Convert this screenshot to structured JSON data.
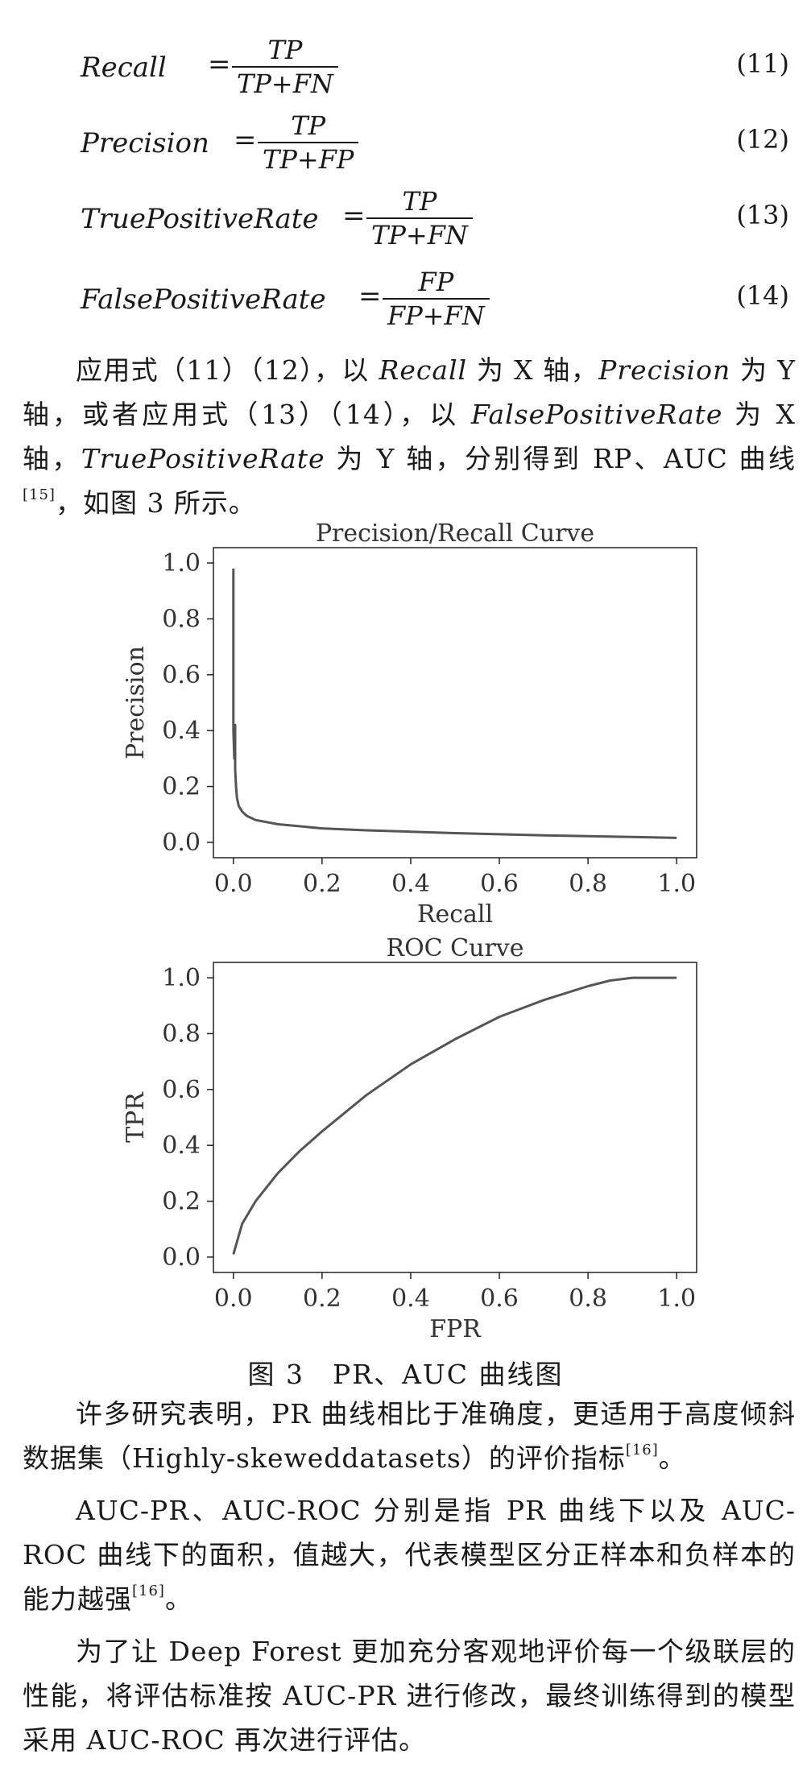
{
  "equations": [
    {
      "lhs": "Recall",
      "num": "TP",
      "den": "TP+FN",
      "no": "(11)"
    },
    {
      "lhs": "Precision",
      "num": "TP",
      "den": "TP+FP",
      "no": "(12)"
    },
    {
      "lhs": "TruePositiveRate",
      "num": "TP",
      "den": "TP+FN",
      "no": "(13)"
    },
    {
      "lhs": "FalsePositiveRate",
      "num": "FP",
      "den": "FP+FN",
      "no": "(14)"
    }
  ],
  "para1": {
    "t1": "应用式（11）（12），以 ",
    "recall": "Recall",
    "t2": " 为 X 轴，",
    "precision": "Precision",
    "t3": " 为 Y 轴，或者应用式（13）（14），以 ",
    "fpr": "FalsePositiveRate",
    "t4": " 为 X 轴，",
    "tpr": "TruePositiveRate",
    "t5": " 为 Y 轴，分别得到 RP、AUC 曲线",
    "ref": "[15]",
    "t6": "，如图 3 所示。"
  },
  "chart_data": [
    {
      "type": "line",
      "title": "Precision/Recall Curve",
      "xlabel": "Recall",
      "ylabel": "Precision",
      "xlim": [
        0,
        1
      ],
      "ylim": [
        0,
        1
      ],
      "xticks": [
        "0.0",
        "0.2",
        "0.4",
        "0.6",
        "0.8",
        "1.0"
      ],
      "yticks": [
        "0.0",
        "0.2",
        "0.4",
        "0.6",
        "0.8",
        "1.0"
      ],
      "series": [
        {
          "x": [
            0.0,
            0.0,
            0.002,
            0.004,
            0.004,
            0.006,
            0.008,
            0.012,
            0.02,
            0.03,
            0.05,
            0.1,
            0.2,
            0.3,
            0.4,
            0.5,
            0.6,
            0.7,
            0.8,
            0.9,
            1.0
          ],
          "y": [
            0.98,
            0.4,
            0.3,
            0.42,
            0.26,
            0.2,
            0.16,
            0.13,
            0.11,
            0.095,
            0.08,
            0.065,
            0.05,
            0.043,
            0.038,
            0.033,
            0.029,
            0.025,
            0.022,
            0.019,
            0.016
          ]
        }
      ]
    },
    {
      "type": "line",
      "title": "ROC Curve",
      "xlabel": "FPR",
      "ylabel": "TPR",
      "xlim": [
        0,
        1
      ],
      "ylim": [
        0,
        1
      ],
      "xticks": [
        "0.0",
        "0.2",
        "0.4",
        "0.6",
        "0.8",
        "1.0"
      ],
      "yticks": [
        "0.0",
        "0.2",
        "0.4",
        "0.6",
        "0.8",
        "1.0"
      ],
      "series": [
        {
          "x": [
            0.0,
            0.02,
            0.05,
            0.1,
            0.15,
            0.2,
            0.3,
            0.4,
            0.5,
            0.6,
            0.7,
            0.8,
            0.85,
            0.9,
            0.95,
            1.0
          ],
          "y": [
            0.01,
            0.12,
            0.2,
            0.3,
            0.38,
            0.45,
            0.58,
            0.69,
            0.78,
            0.86,
            0.92,
            0.97,
            0.99,
            1.0,
            1.0,
            1.0
          ]
        }
      ]
    }
  ],
  "caption": "图 3　PR、AUC 曲线图",
  "para2": {
    "t1": "许多研究表明，PR 曲线相比于准确度，更适用于高度倾斜数据集（Highly-skeweddatasets）的评价指标",
    "ref": "[16]",
    "t2": "。"
  },
  "para3": {
    "t1": "AUC-PR、AUC-ROC 分别是指 PR 曲线下以及 AUC-ROC 曲线下的面积，值越大，代表模型区分正样本和负样本的能力越强",
    "ref": "[16]",
    "t2": "。"
  },
  "para4": {
    "t1": "为了让 Deep Forest 更加充分客观地评价每一个级联层的性能，将评估标准按 AUC-PR 进行修改，最终训练得到的模型采用 AUC-ROC 再次进行评估。"
  },
  "colors": {
    "curve": "#555555",
    "axis": "#222222",
    "text": "#1a1a1a"
  }
}
